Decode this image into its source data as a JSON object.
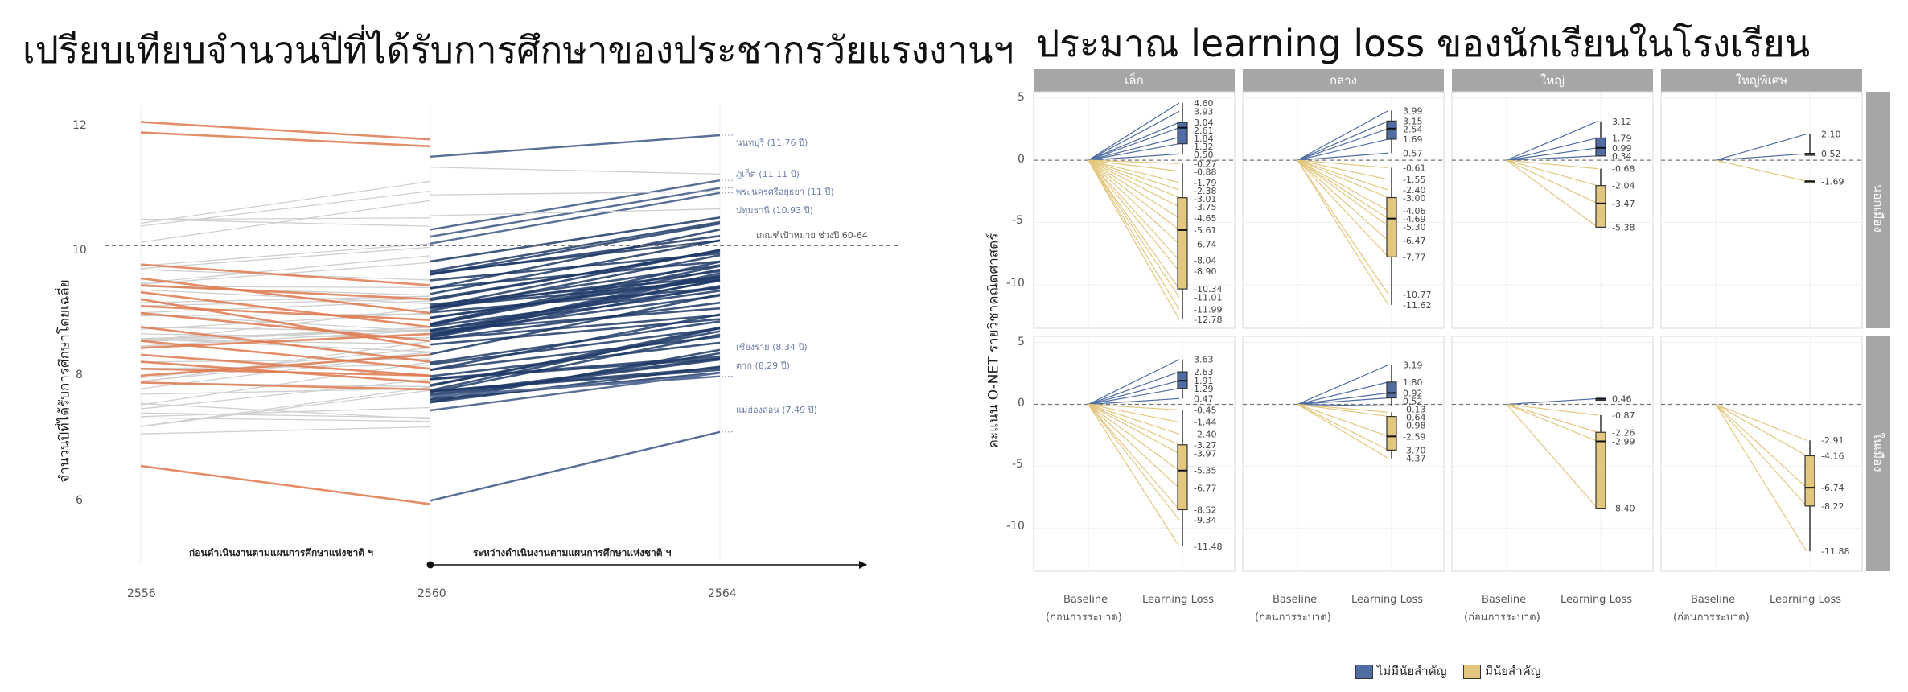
{
  "left": {
    "title": "เปรียบเทียบจำนวนปีที่ได้รับการศึกษาของประชากรวัยแรงงานฯ",
    "chart_data": {
      "type": "line",
      "ylabel": "จำนวนปีที่ได้รับการศึกษาโดยเฉลี่ย",
      "x_ticks": [
        "2556",
        "2560",
        "2564"
      ],
      "y_ticks": [
        "12",
        "10",
        "8",
        "6"
      ],
      "ylim": [
        5.6,
        12.2
      ],
      "reference_line": {
        "y": 10.17,
        "label": "เกณฑ์เป้าหมาย ช่วงปี 60-64"
      },
      "phase_labels": [
        "ก่อนดำเนินงานตามแผนการศึกษาแห่งชาติ ฯ",
        "ระหว่างดำเนินงานตามแผนการศึกษาแห่งชาติ ฯ"
      ],
      "highlighted": [
        {
          "label": "นนทบุรี (11.76 ปี)",
          "y2564": 11.76
        },
        {
          "label": "ภูเก็ต (11.11 ปี)",
          "y2564": 11.11
        },
        {
          "label": "พระนครศรีอยุธยา (11 ปี)",
          "y2564": 11.0
        },
        {
          "label": "ปทุมธานี (10.93 ปี)",
          "y2564": 10.93
        },
        {
          "label": "เชียงราย (8.34 ปี)",
          "y2564": 8.34
        },
        {
          "label": "ตาก (8.29 ปี)",
          "y2564": 8.29
        },
        {
          "label": "แม่ฮ่องสอน (7.49 ปี)",
          "y2564": 7.49
        }
      ],
      "colors": {
        "declining": "#e07a4f",
        "improving": "#1f3a68",
        "other": "#cfcfcf",
        "annotation": "#6d7fa8"
      }
    }
  },
  "right": {
    "title": "ประมาณ learning loss ของนักเรียนในโรงเรียน",
    "chart_data": {
      "type": "line",
      "ylabel": "คะแนน O-NET รายวิชาคณิตศาสตร์",
      "y_ticks": [
        "5",
        "0",
        "-5",
        "-10"
      ],
      "ylim": [
        -13.5,
        5.5
      ],
      "x_ticks": [
        "Baseline",
        "(ก่อนการระบาด)",
        "Learning Loss"
      ],
      "columns": [
        "เล็ก",
        "กลาง",
        "ใหญ่",
        "ใหญ่พิเศษ"
      ],
      "rows": [
        "นอกเมือง",
        "ในเมือง"
      ],
      "legend": [
        {
          "label": "ไม่มีนัยสำคัญ",
          "color": "#4f6da3"
        },
        {
          "label": "มีนัยสำคัญ",
          "color": "#e3c77f"
        }
      ],
      "panels": [
        {
          "row": 0,
          "col": 0,
          "blue": [
            "4.60",
            "3.93",
            "3.04",
            "2.61",
            "1.84",
            "1.32",
            "0.50"
          ],
          "gold": [
            "-0.27",
            "-0.88",
            "-1.79",
            "-2.38",
            "-3.01",
            "-3.75",
            "-4.65",
            "-5.61",
            "-6.74",
            "-8.04",
            "-8.90",
            "-10.34",
            "-11.01",
            "-11.99",
            "-12.78"
          ]
        },
        {
          "row": 0,
          "col": 1,
          "blue": [
            "3.99",
            "3.15",
            "2.54",
            "1.69",
            "0.57"
          ],
          "gold": [
            "-0.61",
            "-1.55",
            "-2.40",
            "-3.00",
            "-4.06",
            "-4.69",
            "-5.30",
            "-6.47",
            "-7.77",
            "-10.77",
            "-11.62"
          ]
        },
        {
          "row": 0,
          "col": 2,
          "blue": [
            "3.12",
            "1.79",
            "0.99",
            "0.34"
          ],
          "gold": [
            "-0.68",
            "-2.04",
            "-3.47",
            "-5.38"
          ]
        },
        {
          "row": 0,
          "col": 3,
          "blue": [
            "2.10",
            "0.52"
          ],
          "gold": [
            "-1.69"
          ]
        },
        {
          "row": 1,
          "col": 0,
          "blue": [
            "3.63",
            "2.63",
            "1.91",
            "1.29",
            "0.47"
          ],
          "gold": [
            "-0.45",
            "-1.44",
            "-2.40",
            "-3.27",
            "-3.97",
            "-5.35",
            "-6.77",
            "-8.52",
            "-9.34",
            "-11.48"
          ]
        },
        {
          "row": 1,
          "col": 1,
          "blue": [
            "3.19",
            "1.80",
            "0.92",
            "0.52",
            "-0.13"
          ],
          "gold": [
            "-0.64",
            "-0.98",
            "-2.59",
            "-3.70",
            "-4.37"
          ]
        },
        {
          "row": 1,
          "col": 2,
          "blue": [
            "0.46"
          ],
          "gold": [
            "-0.87",
            "-2.26",
            "-2.99",
            "-8.40"
          ]
        },
        {
          "row": 1,
          "col": 3,
          "blue": [],
          "gold": [
            "-2.91",
            "-4.16",
            "-6.74",
            "-8.22",
            "-11.88"
          ]
        }
      ]
    }
  }
}
